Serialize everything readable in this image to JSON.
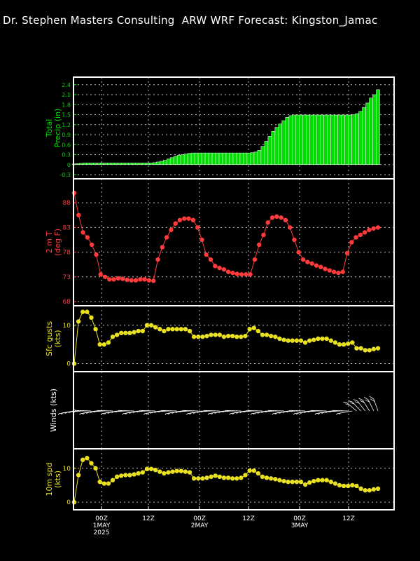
{
  "header": {
    "title": "Dr. Stephen Masters Consulting  ARW WRF Forecast: Kingston_Jamac"
  },
  "colors": {
    "precip": "#00dd00",
    "temp": "#ff3b3b",
    "gust": "#e8e020",
    "wind": "#ffffff",
    "wspd": "#e8e020",
    "frame": "#ffffff"
  },
  "x_axis": {
    "ticks": [
      {
        "lines": [
          "00Z",
          "1MAY",
          "2025"
        ]
      },
      {
        "lines": [
          "12Z"
        ]
      },
      {
        "lines": [
          "00Z",
          "2MAY"
        ]
      },
      {
        "lines": [
          "12Z"
        ]
      },
      {
        "lines": [
          "00Z",
          "3MAY"
        ]
      },
      {
        "lines": [
          "12Z"
        ]
      }
    ]
  },
  "chart_data": [
    {
      "type": "bar",
      "panel": "precip",
      "ylabel": [
        "Total",
        "Precip (in)"
      ],
      "ylim": [
        -0.3,
        2.5
      ],
      "yticks": [
        "2.4",
        "2.1",
        "1.8",
        "1.5",
        "1.2",
        "0.9",
        "0.6",
        "0.3",
        "0",
        "-0.3"
      ],
      "values": [
        0.02,
        0.03,
        0.04,
        0.05,
        0.05,
        0.05,
        0.05,
        0.05,
        0.05,
        0.05,
        0.05,
        0.05,
        0.05,
        0.05,
        0.05,
        0.05,
        0.05,
        0.05,
        0.05,
        0.05,
        0.05,
        0.05,
        0.05,
        0.06,
        0.08,
        0.1,
        0.13,
        0.17,
        0.21,
        0.25,
        0.28,
        0.3,
        0.32,
        0.34,
        0.35,
        0.35,
        0.35,
        0.35,
        0.35,
        0.35,
        0.35,
        0.35,
        0.35,
        0.35,
        0.35,
        0.35,
        0.35,
        0.35,
        0.35,
        0.35,
        0.35,
        0.36,
        0.38,
        0.43,
        0.55,
        0.7,
        0.85,
        1.0,
        1.12,
        1.22,
        1.32,
        1.42,
        1.47,
        1.49,
        1.49,
        1.49,
        1.49,
        1.49,
        1.49,
        1.49,
        1.49,
        1.49,
        1.49,
        1.49,
        1.49,
        1.49,
        1.49,
        1.49,
        1.49,
        1.49,
        1.5,
        1.53,
        1.6,
        1.72,
        1.85,
        2.0,
        2.1,
        2.25
      ]
    },
    {
      "type": "line",
      "panel": "temp",
      "ylabel": [
        "2 m T",
        "(deg F)"
      ],
      "ylim": [
        68,
        92
      ],
      "yticks": [
        "88",
        "83",
        "78",
        "73",
        "68"
      ],
      "values": [
        90,
        85.5,
        82,
        81,
        79.5,
        77.5,
        73.5,
        73,
        72.5,
        72.5,
        72.7,
        72.6,
        72.4,
        72.3,
        72.3,
        72.5,
        72.5,
        72.3,
        72.2,
        76.5,
        79,
        81,
        82.5,
        83.8,
        84.5,
        84.8,
        84.8,
        84.5,
        83,
        80.5,
        77.5,
        76.5,
        75.2,
        74.8,
        74.5,
        74,
        73.8,
        73.6,
        73.5,
        73.5,
        73.5,
        76.5,
        79.5,
        81.5,
        84,
        85,
        85.2,
        85,
        84.5,
        83,
        80.5,
        78,
        76.5,
        76,
        75.7,
        75.3,
        75,
        74.6,
        74.3,
        74,
        73.8,
        74,
        77.8,
        80,
        81,
        81.5,
        82,
        82.5,
        82.8,
        83
      ]
    },
    {
      "type": "line",
      "panel": "gusts",
      "ylabel": [
        "Sfc gusts",
        "(kts)"
      ],
      "ylim": [
        -1,
        14
      ],
      "yticks": [
        "10",
        "0"
      ],
      "values": [
        0,
        11,
        13.5,
        13.5,
        12,
        9,
        5,
        5,
        5.5,
        7,
        7.5,
        8,
        8,
        8,
        8.2,
        8.5,
        8.5,
        10,
        10,
        9.5,
        9,
        8.5,
        9,
        9,
        9,
        9,
        9,
        8.5,
        7,
        7,
        7,
        7.2,
        7.5,
        7.5,
        7.5,
        7,
        7.2,
        7.2,
        7,
        7,
        7.2,
        9,
        9.3,
        8.5,
        7.5,
        7.5,
        7.2,
        7,
        6.5,
        6.2,
        6,
        6,
        6,
        6,
        5.5,
        6,
        6.2,
        6.5,
        6.5,
        6.5,
        6,
        5.5,
        5,
        5,
        5.2,
        5.5,
        4,
        4,
        3.5,
        3.5,
        3.8,
        4
      ]
    },
    {
      "type": "wind_barbs",
      "panel": "winds",
      "ylabel": [
        "Winds  (kts)"
      ],
      "barb_count": 72
    },
    {
      "type": "line",
      "panel": "wspd",
      "ylabel": [
        "10m spd",
        "(kts)"
      ],
      "ylim": [
        -1,
        14.5
      ],
      "yticks": [
        "10",
        "0"
      ],
      "values": [
        0,
        8,
        12.5,
        13,
        11.5,
        10,
        6,
        5.5,
        5.5,
        6.5,
        7.5,
        7.8,
        8,
        8,
        8.2,
        8.5,
        8.8,
        9.8,
        9.8,
        9.5,
        9,
        8.5,
        8.8,
        9,
        9.2,
        9.2,
        9,
        8.8,
        7,
        7,
        7,
        7.2,
        7.5,
        7.8,
        7.5,
        7.2,
        7.2,
        7,
        7,
        7.2,
        8,
        9.3,
        9.3,
        8.5,
        7.5,
        7.2,
        7,
        6.8,
        6.5,
        6.2,
        6,
        6,
        6,
        6,
        5.2,
        5.8,
        6.2,
        6.5,
        6.5,
        6.5,
        6,
        5.5,
        5,
        4.8,
        4.8,
        5,
        4.8,
        4,
        3.5,
        3.5,
        3.8,
        4
      ]
    }
  ]
}
